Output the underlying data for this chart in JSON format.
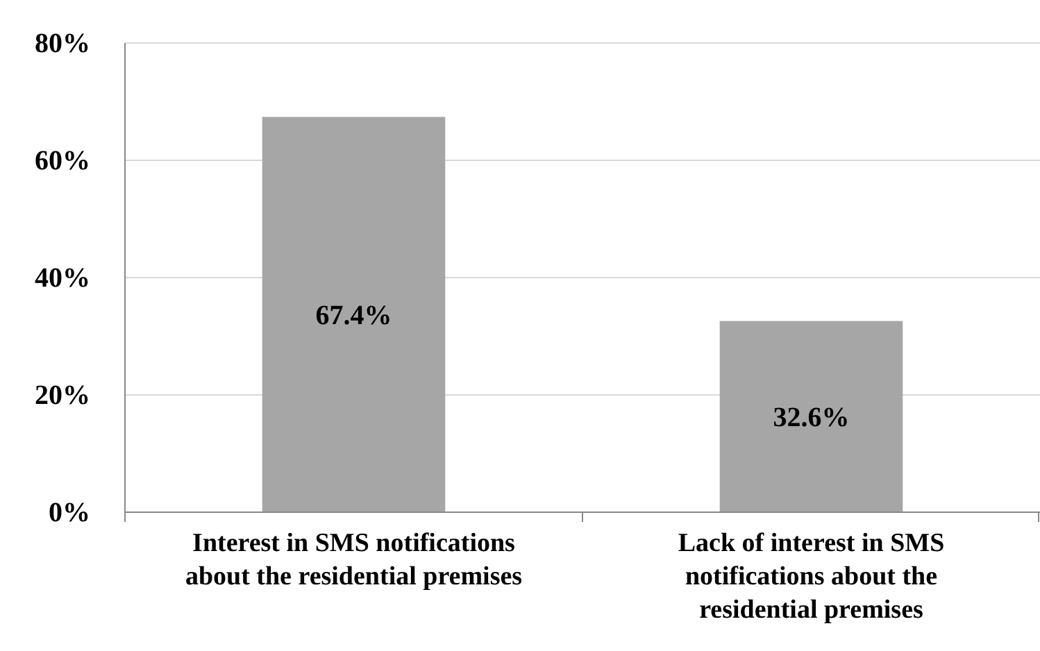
{
  "chart_data": {
    "type": "bar",
    "categories": [
      "Interest in SMS notifications about the residential premises",
      "Lack of interest in SMS notifications about the residential premises"
    ],
    "values": [
      67.4,
      32.6
    ],
    "value_labels": [
      "67.4%",
      "32.6%"
    ],
    "color": "#a6a6a6",
    "ylim": [
      0,
      80
    ],
    "yticks": [
      {
        "value": 0,
        "label": "0%"
      },
      {
        "value": 20,
        "label": "20%"
      },
      {
        "value": 40,
        "label": "40%"
      },
      {
        "value": 60,
        "label": "60%"
      },
      {
        "value": 80,
        "label": "80%"
      }
    ],
    "grid": "y"
  }
}
